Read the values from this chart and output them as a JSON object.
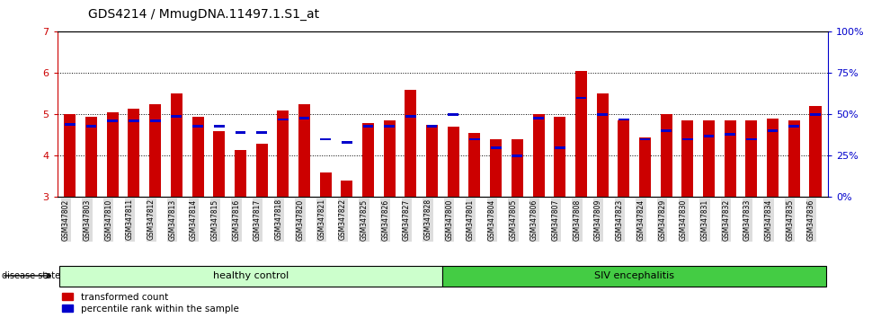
{
  "title": "GDS4214 / MmugDNA.11497.1.S1_at",
  "samples": [
    "GSM347802",
    "GSM347803",
    "GSM347810",
    "GSM347811",
    "GSM347812",
    "GSM347813",
    "GSM347814",
    "GSM347815",
    "GSM347816",
    "GSM347817",
    "GSM347818",
    "GSM347820",
    "GSM347821",
    "GSM347822",
    "GSM347825",
    "GSM347826",
    "GSM347827",
    "GSM347828",
    "GSM347800",
    "GSM347801",
    "GSM347804",
    "GSM347805",
    "GSM347806",
    "GSM347807",
    "GSM347808",
    "GSM347809",
    "GSM347823",
    "GSM347824",
    "GSM347829",
    "GSM347830",
    "GSM347831",
    "GSM347832",
    "GSM347833",
    "GSM347834",
    "GSM347835",
    "GSM347836"
  ],
  "transformed_count": [
    5.0,
    4.95,
    5.05,
    5.15,
    5.25,
    5.5,
    4.95,
    4.6,
    4.15,
    4.3,
    5.1,
    5.25,
    3.6,
    3.4,
    4.8,
    4.85,
    5.6,
    4.75,
    4.7,
    4.55,
    4.4,
    4.4,
    5.0,
    4.95,
    6.05,
    5.5,
    4.85,
    4.45,
    5.0,
    4.85,
    4.85,
    4.85,
    4.85,
    4.9,
    4.85,
    5.2
  ],
  "percentile_rank": [
    44,
    43,
    46,
    46,
    46,
    49,
    43,
    43,
    39,
    39,
    47,
    48,
    35,
    33,
    43,
    43,
    49,
    43,
    50,
    35,
    30,
    25,
    48,
    30,
    60,
    50,
    47,
    35,
    40,
    35,
    37,
    38,
    35,
    40,
    43,
    50
  ],
  "group_healthy_count": 18,
  "group_siv_count": 18,
  "ylim_left": [
    3,
    7
  ],
  "ylim_right": [
    0,
    100
  ],
  "yticks_left": [
    3,
    4,
    5,
    6,
    7
  ],
  "yticks_right": [
    0,
    25,
    50,
    75,
    100
  ],
  "ytick_labels_right": [
    "0%",
    "25%",
    "50%",
    "75%",
    "100%"
  ],
  "bar_color": "#CC0000",
  "percentile_color": "#0000CC",
  "healthy_bg": "#CCFFCC",
  "siv_bg": "#44CC44",
  "xticklabel_bg": "#DDDDDD",
  "title_fontsize": 10,
  "axis_label_color_left": "#CC0000",
  "axis_label_color_right": "#0000CC",
  "legend_items": [
    "transformed count",
    "percentile rank within the sample"
  ],
  "disease_state_label": "disease state",
  "healthy_label": "healthy control",
  "siv_label": "SIV encephalitis"
}
